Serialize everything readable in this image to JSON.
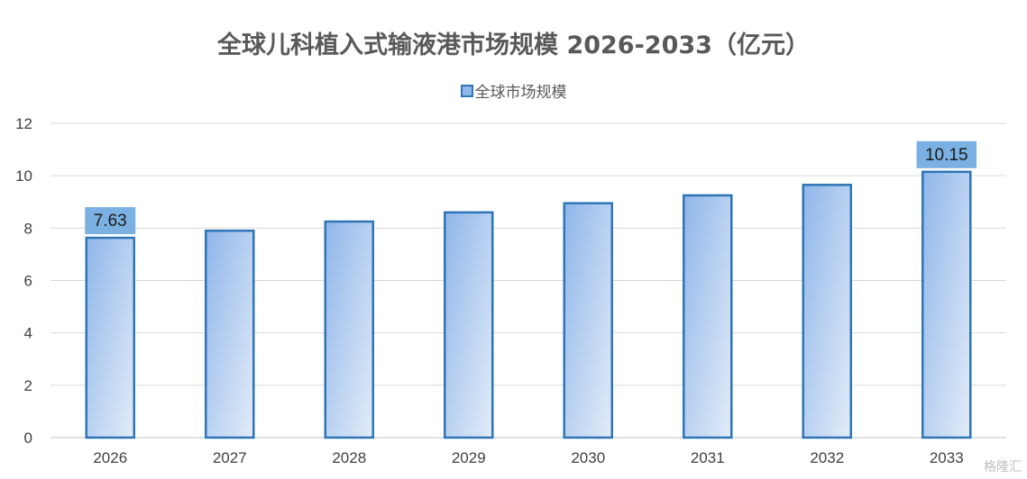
{
  "chart_data": {
    "type": "bar",
    "title": "全球儿科植入式输液港市场规模 2026-2033（亿元）",
    "categories": [
      "2026",
      "2027",
      "2028",
      "2029",
      "2030",
      "2031",
      "2032",
      "2033"
    ],
    "series": [
      {
        "name": "全球市场规模",
        "values": [
          7.63,
          7.9,
          8.25,
          8.6,
          8.95,
          9.25,
          9.65,
          10.15
        ]
      }
    ],
    "data_labels": [
      "7.63",
      "",
      "",
      "",
      "",
      "",
      "",
      "10.15"
    ],
    "ylim": [
      0,
      12
    ],
    "yticks": [
      "0",
      "2",
      "4",
      "6",
      "8",
      "10",
      "12"
    ],
    "grid": true,
    "legend_position": "top"
  },
  "colors": {
    "bar_stroke": "#2e75b6",
    "bar_fill_start": "#8fb6ea",
    "bar_fill_end": "#e3ecf8",
    "label_box": "#7ab1e2",
    "grid": "#d9d9d9"
  },
  "watermark": "格隆汇"
}
